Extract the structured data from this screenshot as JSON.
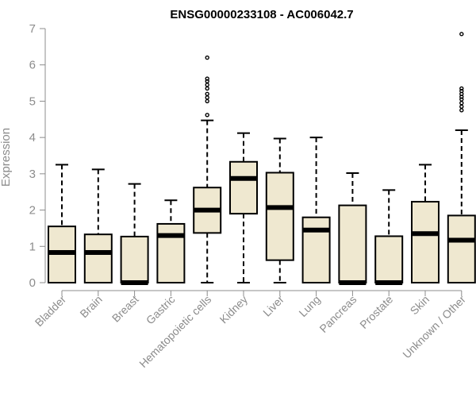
{
  "chart_data": {
    "type": "boxplot",
    "title": "ENSG00000233108 - AC006042.7",
    "ylabel": "Expression",
    "xlabel": "",
    "ylim": [
      0,
      7
    ],
    "yticks": [
      0,
      1,
      2,
      3,
      4,
      5,
      6,
      7
    ],
    "grid": false,
    "box_fill": "#efe8d0",
    "stroke": "#000000",
    "axis_color": "#8c8c8c",
    "categories": [
      "Bladder",
      "Brain",
      "Breast",
      "Gastric",
      "Hematopoietic cells",
      "Kidney",
      "Liver",
      "Lung",
      "Pancreas",
      "Prostate",
      "Skin",
      "Unknown / Other"
    ],
    "boxes": [
      {
        "min": 0,
        "q1": 0,
        "median": 0.83,
        "q3": 1.55,
        "max": 3.25,
        "outliers": []
      },
      {
        "min": 0,
        "q1": 0,
        "median": 0.83,
        "q3": 1.33,
        "max": 3.12,
        "outliers": []
      },
      {
        "min": 0,
        "q1": 0,
        "median": 0.0,
        "q3": 1.27,
        "max": 2.72,
        "outliers": []
      },
      {
        "min": 0,
        "q1": 0,
        "median": 1.3,
        "q3": 1.62,
        "max": 2.27,
        "outliers": []
      },
      {
        "min": 0,
        "q1": 1.37,
        "median": 2.0,
        "q3": 2.62,
        "max": 4.47,
        "outliers": [
          4.62,
          5.0,
          5.1,
          5.2,
          5.35,
          5.45,
          5.55,
          5.62,
          6.2
        ]
      },
      {
        "min": 0,
        "q1": 1.9,
        "median": 2.87,
        "q3": 3.33,
        "max": 4.12,
        "outliers": []
      },
      {
        "min": 0,
        "q1": 0.62,
        "median": 2.07,
        "q3": 3.03,
        "max": 3.97,
        "outliers": []
      },
      {
        "min": 0,
        "q1": 0,
        "median": 1.45,
        "q3": 1.8,
        "max": 4.0,
        "outliers": []
      },
      {
        "min": 0,
        "q1": 0,
        "median": 0.0,
        "q3": 2.13,
        "max": 3.02,
        "outliers": []
      },
      {
        "min": 0,
        "q1": 0,
        "median": 0.0,
        "q3": 1.28,
        "max": 2.55,
        "outliers": []
      },
      {
        "min": 0,
        "q1": 0,
        "median": 1.35,
        "q3": 2.23,
        "max": 3.25,
        "outliers": []
      },
      {
        "min": 0,
        "q1": 0,
        "median": 1.17,
        "q3": 1.85,
        "max": 4.2,
        "outliers": [
          4.75,
          4.85,
          4.95,
          5.05,
          5.12,
          5.2,
          5.28,
          5.35,
          6.85
        ]
      }
    ]
  }
}
